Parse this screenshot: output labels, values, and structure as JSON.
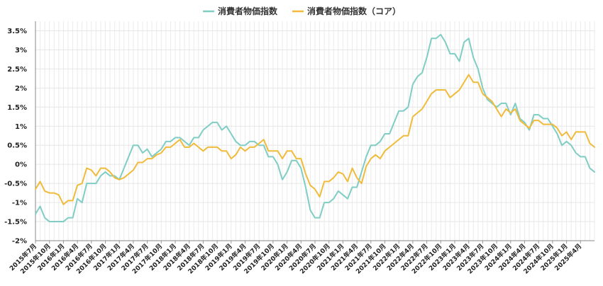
{
  "chart_data": {
    "type": "line",
    "legend_position": "top-center",
    "grid": true,
    "ylim": [
      -2.0,
      3.75
    ],
    "y_ticks": [
      -2.0,
      -1.5,
      -1.0,
      -0.5,
      0.0,
      0.5,
      1.0,
      1.5,
      2.0,
      2.5,
      3.0,
      3.5
    ],
    "y_tick_labels": [
      "-2%",
      "-1.5%",
      "-1%",
      "-0.5%",
      "0%",
      "0.5%",
      "1%",
      "1.5%",
      "2%",
      "2.5%",
      "3%",
      "3.5%"
    ],
    "x_tick_labels": [
      "2015年7月",
      "2015年10月",
      "2016年1月",
      "2016年4月",
      "2016年7月",
      "2016年10月",
      "2017年1月",
      "2017年4月",
      "2017年7月",
      "2017年10月",
      "2018年1月",
      "2018年4月",
      "2018年7月",
      "2018年10月",
      "2019年1月",
      "2019年4月",
      "2019年7月",
      "2019年10月",
      "2020年1月",
      "2020年4月",
      "2020年7月",
      "2020年10月",
      "2021年1月",
      "2021年4月",
      "2021年7月",
      "2021年10月",
      "2022年1月",
      "2022年4月",
      "2022年7月",
      "2022年10月",
      "2023年1月",
      "2023年4月",
      "2023年7月",
      "2023年10月",
      "2024年1月",
      "2024年4月",
      "2024年7月",
      "2024年10月",
      "2025年1月",
      "2025年4月"
    ],
    "series": [
      {
        "name": "消費者物価指数",
        "color": "#7fcdc4",
        "values": [
          -1.3,
          -1.1,
          -1.4,
          -1.5,
          -1.5,
          -1.5,
          -1.5,
          -1.4,
          -1.4,
          -0.9,
          -1.0,
          -0.5,
          -0.5,
          -0.5,
          -0.3,
          -0.2,
          -0.3,
          -0.3,
          -0.4,
          -0.1,
          0.2,
          0.5,
          0.5,
          0.3,
          0.4,
          0.2,
          0.3,
          0.4,
          0.6,
          0.6,
          0.7,
          0.7,
          0.6,
          0.5,
          0.7,
          0.7,
          0.9,
          1.0,
          1.1,
          1.1,
          0.9,
          1.0,
          0.8,
          0.6,
          0.5,
          0.5,
          0.6,
          0.6,
          0.5,
          0.5,
          0.2,
          0.2,
          0.0,
          -0.4,
          -0.2,
          0.1,
          0.1,
          -0.1,
          -0.6,
          -1.2,
          -1.4,
          -1.4,
          -1.0,
          -1.0,
          -0.9,
          -0.7,
          -0.8,
          -0.9,
          -0.6,
          -0.6,
          -0.2,
          0.2,
          0.5,
          0.5,
          0.6,
          0.8,
          0.8,
          1.1,
          1.4,
          1.4,
          1.5,
          2.1,
          2.3,
          2.4,
          2.8,
          3.3,
          3.3,
          3.4,
          3.2,
          2.9,
          2.9,
          2.7,
          3.2,
          3.3,
          2.8,
          2.5,
          2.0,
          1.7,
          1.6,
          1.5,
          1.6,
          1.6,
          1.3,
          1.6,
          1.2,
          1.1,
          0.9,
          1.3,
          1.3,
          1.2,
          1.2,
          1.0,
          0.8,
          0.5,
          0.6,
          0.5,
          0.3,
          0.2,
          0.2,
          -0.1,
          -0.2
        ]
      },
      {
        "name": "消費者物価指数（コア）",
        "color": "#f0bb3a",
        "values": [
          -0.65,
          -0.45,
          -0.7,
          -0.75,
          -0.75,
          -0.8,
          -1.05,
          -0.95,
          -0.95,
          -0.55,
          -0.5,
          -0.1,
          -0.15,
          -0.3,
          -0.1,
          -0.1,
          -0.2,
          -0.35,
          -0.4,
          -0.35,
          -0.25,
          -0.15,
          0.05,
          0.05,
          0.15,
          0.15,
          0.25,
          0.3,
          0.45,
          0.45,
          0.55,
          0.65,
          0.45,
          0.45,
          0.55,
          0.45,
          0.35,
          0.45,
          0.45,
          0.45,
          0.35,
          0.35,
          0.15,
          0.25,
          0.45,
          0.35,
          0.45,
          0.45,
          0.55,
          0.65,
          0.35,
          0.35,
          0.35,
          0.15,
          0.35,
          0.35,
          0.15,
          0.15,
          -0.25,
          -0.55,
          -0.65,
          -0.85,
          -0.45,
          -0.45,
          -0.35,
          -0.2,
          -0.25,
          -0.45,
          -0.1,
          -0.35,
          -0.5,
          -0.05,
          0.15,
          0.25,
          0.15,
          0.35,
          0.45,
          0.55,
          0.65,
          0.75,
          0.75,
          1.25,
          1.35,
          1.45,
          1.65,
          1.85,
          1.95,
          1.95,
          1.95,
          1.75,
          1.85,
          1.95,
          2.15,
          2.35,
          2.15,
          2.15,
          1.85,
          1.75,
          1.65,
          1.45,
          1.25,
          1.45,
          1.35,
          1.45,
          1.15,
          1.05,
          0.95,
          1.15,
          1.15,
          1.05,
          1.05,
          1.05,
          0.95,
          0.75,
          0.85,
          0.65,
          0.85,
          0.85,
          0.85,
          0.55,
          0.45
        ]
      }
    ]
  }
}
